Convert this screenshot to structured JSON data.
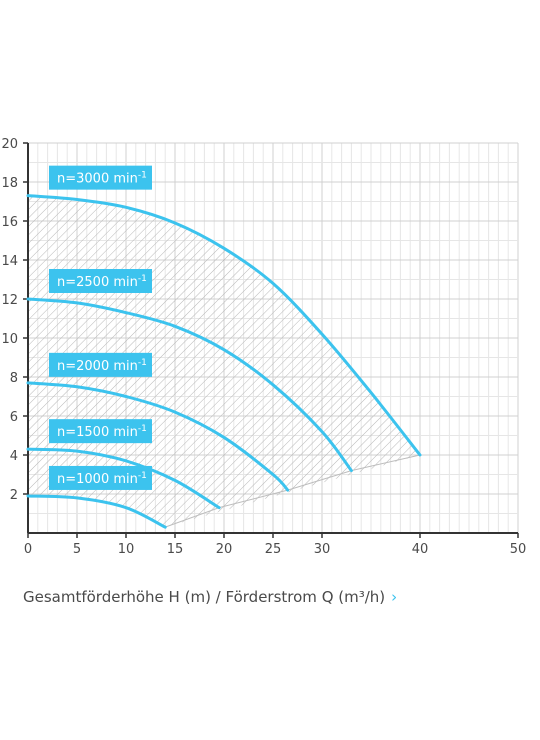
{
  "caption": {
    "text": "Gesamtförderhöhe H (m) / Förderstrom Q (m³/h)",
    "link_icon": "chevron-right-icon",
    "chevron_glyph": "›"
  },
  "chart_data": {
    "type": "line",
    "x_ticks": [
      0,
      5,
      10,
      15,
      20,
      25,
      30,
      40,
      50
    ],
    "y_ticks": [
      2,
      4,
      6,
      8,
      10,
      12,
      14,
      16,
      18,
      20
    ],
    "grid": true,
    "hatched_operating_region": true,
    "colors": {
      "curve": "#3cc3ee",
      "label_bg": "#3cc3ee",
      "label_text": "#ffffff",
      "grid": "#d0d0d0",
      "axis": "#333333"
    },
    "series": [
      {
        "name": "n=3000 min",
        "sup": "-1",
        "x": [
          0,
          5,
          10,
          15,
          20,
          25,
          30,
          35,
          40
        ],
        "y": [
          17.3,
          17.1,
          16.7,
          15.9,
          14.6,
          12.8,
          10.2,
          7.2,
          4.0
        ]
      },
      {
        "name": "n=2500 min",
        "sup": "-1",
        "x": [
          0,
          5,
          10,
          15,
          20,
          25,
          30,
          33
        ],
        "y": [
          12.0,
          11.8,
          11.3,
          10.6,
          9.4,
          7.6,
          5.2,
          3.2
        ]
      },
      {
        "name": "n=2000 min",
        "sup": "-1",
        "x": [
          0,
          5,
          10,
          15,
          20,
          25,
          26.5
        ],
        "y": [
          7.7,
          7.5,
          7.0,
          6.2,
          4.9,
          3.0,
          2.2
        ]
      },
      {
        "name": "n=1500 min",
        "sup": "-1",
        "x": [
          0,
          5,
          10,
          15,
          19.5
        ],
        "y": [
          4.3,
          4.2,
          3.7,
          2.7,
          1.3
        ]
      },
      {
        "name": "n=1000 min",
        "sup": "-1",
        "x": [
          0,
          5,
          10,
          14
        ],
        "y": [
          1.9,
          1.8,
          1.3,
          0.3
        ]
      }
    ]
  }
}
